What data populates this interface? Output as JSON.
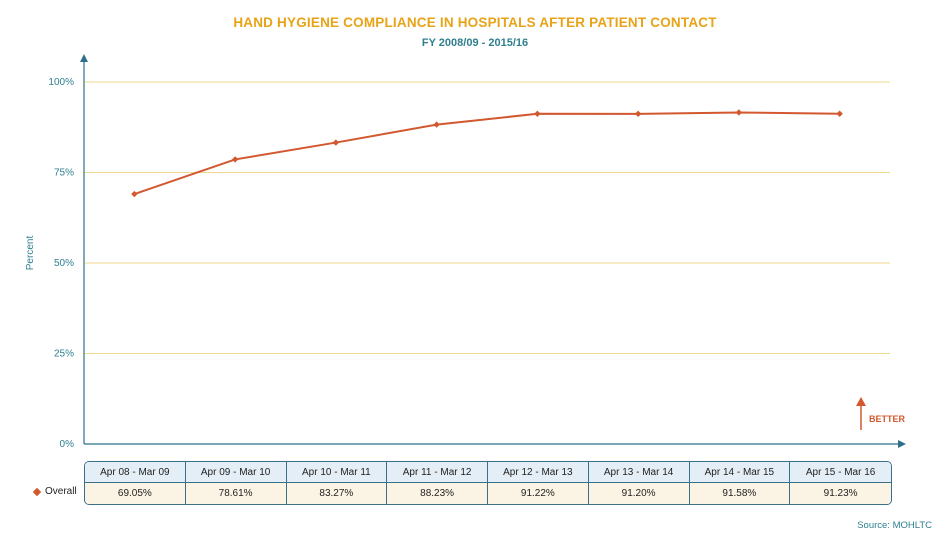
{
  "chart_data": {
    "type": "line",
    "title": "HAND HYGIENE COMPLIANCE IN HOSPITALS AFTER PATIENT CONTACT",
    "subtitle": "FY 2008/09 - 2015/16",
    "ylabel": "Percent",
    "ylim": [
      0,
      100
    ],
    "yticks": [
      "0%",
      "25%",
      "50%",
      "75%",
      "100%"
    ],
    "ytick_values": [
      0,
      25,
      50,
      75,
      100
    ],
    "categories": [
      "Apr 08 - Mar 09",
      "Apr 09 - Mar 10",
      "Apr 10 - Mar 11",
      "Apr 11 - Mar 12",
      "Apr 12 - Mar 13",
      "Apr 13 - Mar 14",
      "Apr 14 - Mar 15",
      "Apr 15 - Mar 16"
    ],
    "series": [
      {
        "name": "Overall",
        "values": [
          69.05,
          78.61,
          83.27,
          88.23,
          91.22,
          91.2,
          91.58,
          91.23
        ],
        "labels": [
          "69.05%",
          "78.61%",
          "83.27%",
          "88.23%",
          "91.22%",
          "91.20%",
          "91.58%",
          "91.23%"
        ]
      }
    ],
    "grid": true,
    "better_indicator": "BETTER",
    "source": "Source: MOHLTC"
  },
  "colors": {
    "title": "#e8a317",
    "subtitle": "#2f7f8f",
    "axis": "#2f6f8a",
    "grid": "#f0d98c",
    "series": "#d3582f"
  }
}
